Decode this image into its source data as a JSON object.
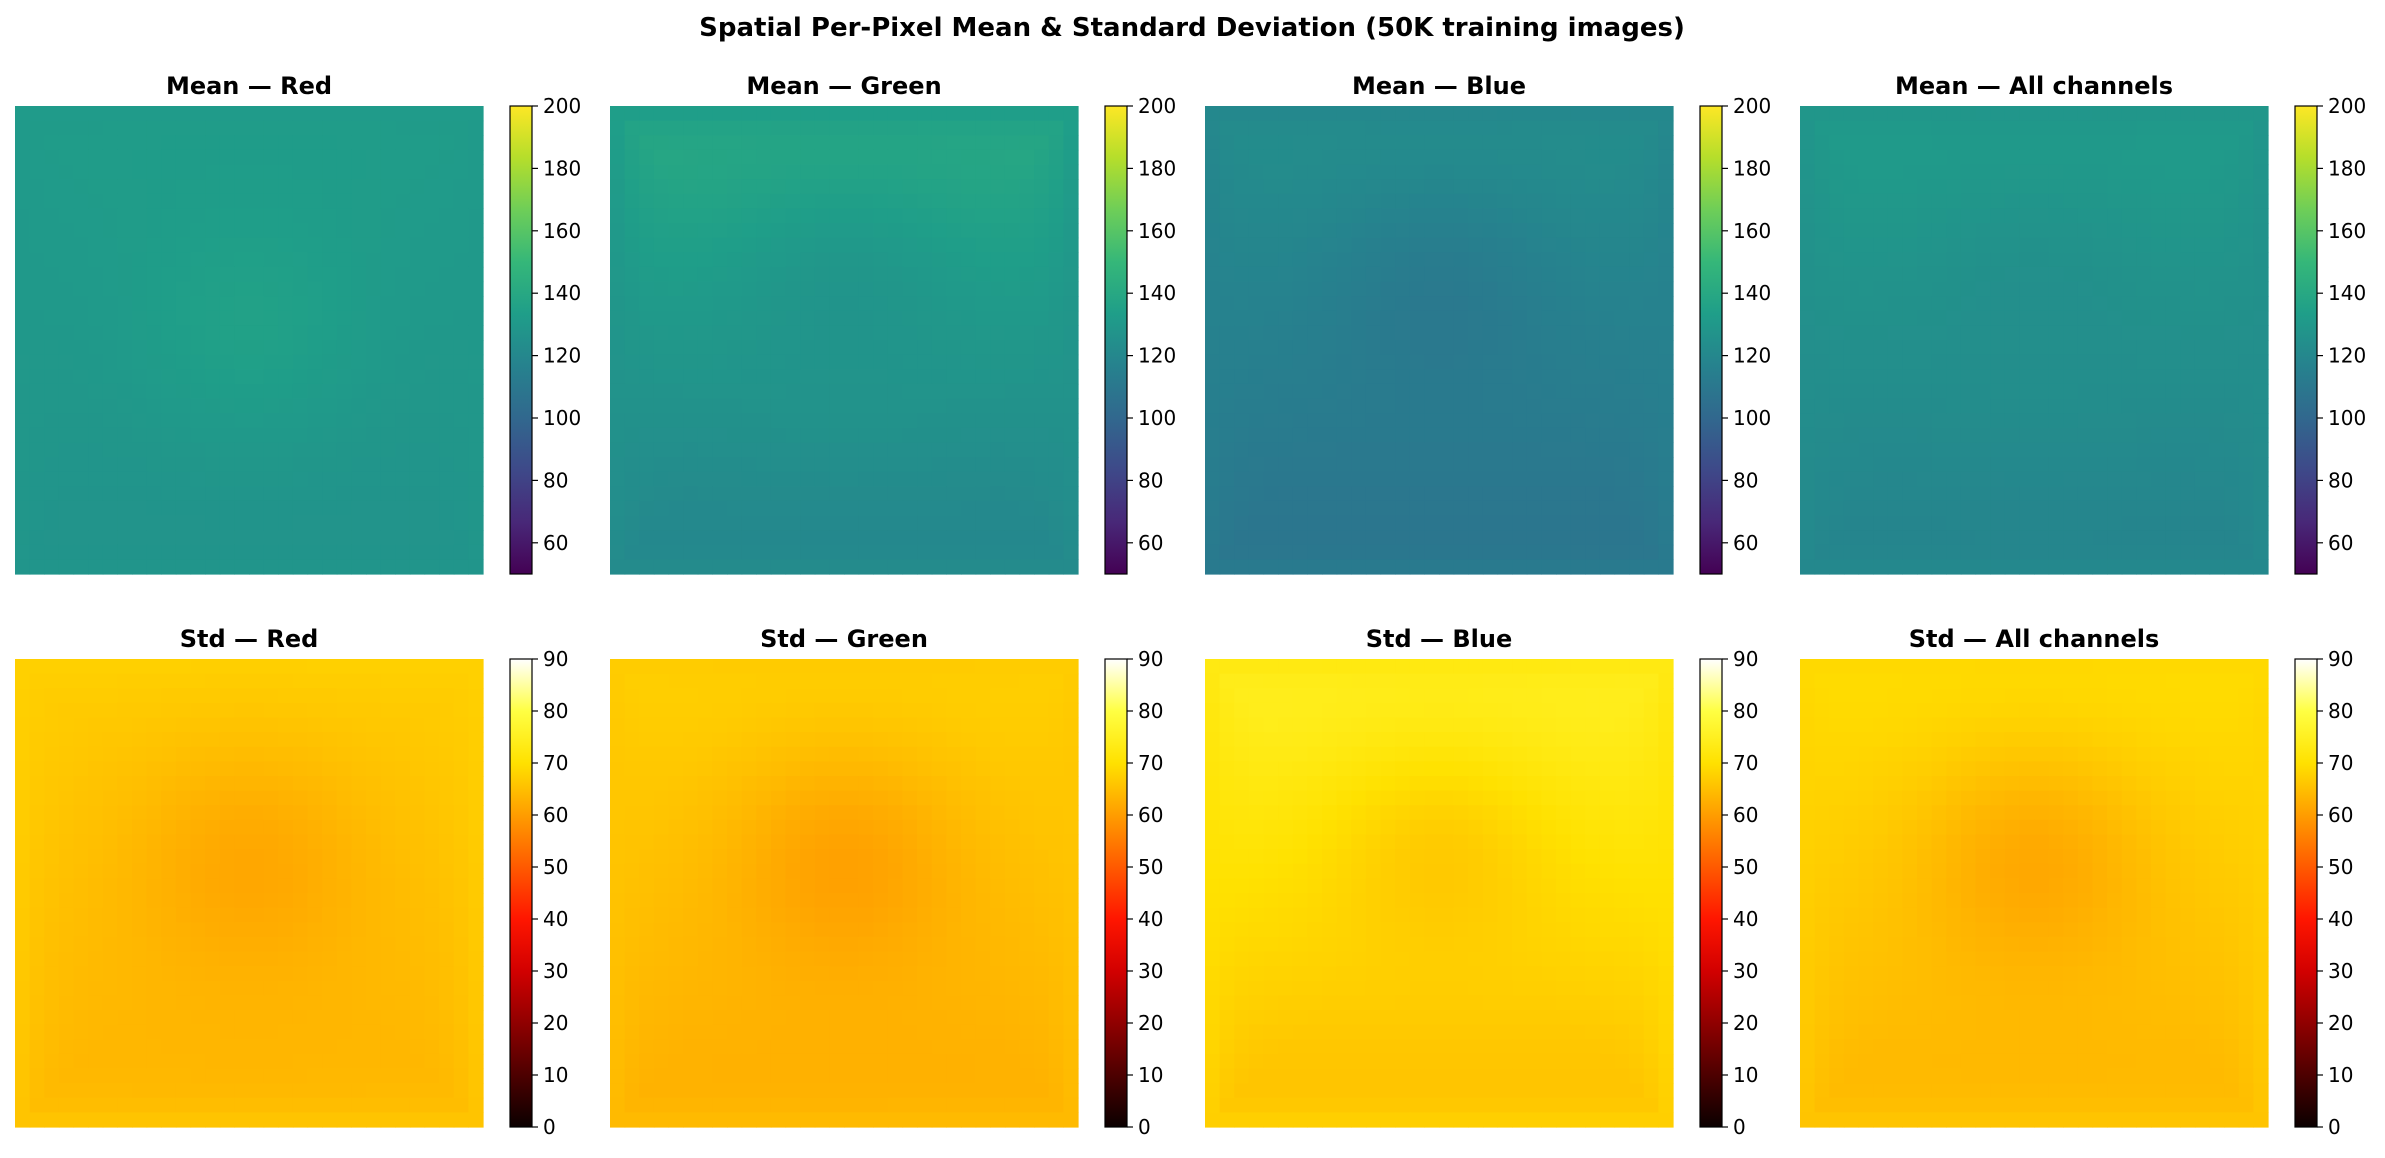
{
  "figure": {
    "suptitle": "Spatial Per-Pixel Mean & Standard Deviation (50K training images)"
  },
  "colormaps": {
    "viridis": [
      "#440154",
      "#482878",
      "#3e4989",
      "#31688e",
      "#26828e",
      "#1f9e89",
      "#35b779",
      "#6ece58",
      "#b5de2b",
      "#fde725"
    ],
    "hot": [
      "#0b0000",
      "#4d0000",
      "#900000",
      "#d20000",
      "#ff1600",
      "#ff5a00",
      "#ff9d00",
      "#ffe100",
      "#ffff43",
      "#ffffff"
    ]
  },
  "chart_data": [
    {
      "type": "heatmap",
      "title": "Mean — Red",
      "colormap": "viridis",
      "clim": [
        50,
        200
      ],
      "colorbar_ticks": [
        60,
        80,
        100,
        120,
        140,
        160,
        180,
        200
      ],
      "grid_size": 32,
      "spatial_pattern": {
        "top": 133,
        "center": 136,
        "bottom": 126,
        "edge": 130
      }
    },
    {
      "type": "heatmap",
      "title": "Mean — Green",
      "colormap": "viridis",
      "clim": [
        50,
        200
      ],
      "colorbar_ticks": [
        60,
        80,
        100,
        120,
        140,
        160,
        180,
        200
      ],
      "grid_size": 32,
      "spatial_pattern": {
        "top": 143,
        "center": 127,
        "bottom": 117,
        "edge": 126
      }
    },
    {
      "type": "heatmap",
      "title": "Mean — Blue",
      "colormap": "viridis",
      "clim": [
        50,
        200
      ],
      "colorbar_ticks": [
        60,
        80,
        100,
        120,
        140,
        160,
        180,
        200
      ],
      "grid_size": 32,
      "spatial_pattern": {
        "top": 126,
        "center": 110,
        "bottom": 106,
        "edge": 116
      }
    },
    {
      "type": "heatmap",
      "title": "Mean — All channels",
      "colormap": "viridis",
      "clim": [
        50,
        200
      ],
      "colorbar_ticks": [
        60,
        80,
        100,
        120,
        140,
        160,
        180,
        200
      ],
      "grid_size": 32,
      "spatial_pattern": {
        "top": 134,
        "center": 124,
        "bottom": 116,
        "edge": 124
      }
    },
    {
      "type": "heatmap",
      "title": "Std — Red",
      "colormap": "hot",
      "clim": [
        0,
        90
      ],
      "colorbar_ticks": [
        0,
        10,
        20,
        30,
        40,
        50,
        60,
        70,
        80,
        90
      ],
      "grid_size": 32,
      "spatial_pattern": {
        "top": 67,
        "center": 61,
        "bottom": 63,
        "edge": 68
      }
    },
    {
      "type": "heatmap",
      "title": "Std — Green",
      "colormap": "hot",
      "clim": [
        0,
        90
      ],
      "colorbar_ticks": [
        0,
        10,
        20,
        30,
        40,
        50,
        60,
        70,
        80,
        90
      ],
      "grid_size": 32,
      "spatial_pattern": {
        "top": 68,
        "center": 60,
        "bottom": 62,
        "edge": 66
      }
    },
    {
      "type": "heatmap",
      "title": "Std — Blue",
      "colormap": "hot",
      "clim": [
        0,
        90
      ],
      "colorbar_ticks": [
        0,
        10,
        20,
        30,
        40,
        50,
        60,
        70,
        80,
        90
      ],
      "grid_size": 32,
      "spatial_pattern": {
        "top": 76,
        "center": 66,
        "bottom": 64,
        "edge": 70
      }
    },
    {
      "type": "heatmap",
      "title": "Std — All channels",
      "colormap": "hot",
      "clim": [
        0,
        90
      ],
      "colorbar_ticks": [
        0,
        10,
        20,
        30,
        40,
        50,
        60,
        70,
        80,
        90
      ],
      "grid_size": 32,
      "spatial_pattern": {
        "top": 70,
        "center": 61,
        "bottom": 63,
        "edge": 68
      }
    }
  ]
}
